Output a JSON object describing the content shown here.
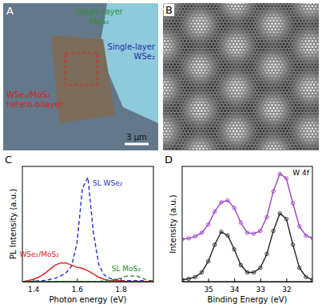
{
  "panels": [
    {
      "letter": "A",
      "labels": [
        {
          "text": "Single-layer MoS₂",
          "color": "#2f8f2f"
        },
        {
          "text": "Single-layer WSe₂",
          "color": "#1f2fa8"
        },
        {
          "text": "WSe₂/MoS₂ hetero-bilayer",
          "color": "#d42020"
        }
      ],
      "scale_bar": "3 μm"
    },
    {
      "letter": "B"
    }
  ],
  "chart_data": [
    {
      "type": "line",
      "letter": "C",
      "x_label": "Photon energy (eV)",
      "y_label": "PL Intensity (a.u.)",
      "x": [
        1.35,
        1.375,
        1.4,
        1.425,
        1.45,
        1.475,
        1.5,
        1.525,
        1.55,
        1.575,
        1.6,
        1.625,
        1.65,
        1.675,
        1.7,
        1.725,
        1.75,
        1.775,
        1.8,
        1.825,
        1.85,
        1.875,
        1.9,
        1.925,
        1.95
      ],
      "series": [
        {
          "name": "SL WSe₂",
          "color": "#2233cc",
          "line_style": "dashed",
          "values": [
            0,
            0,
            0,
            0.01,
            0.01,
            0.02,
            0.03,
            0.05,
            0.08,
            0.14,
            0.35,
            0.85,
            0.95,
            0.45,
            0.15,
            0.06,
            0.03,
            0.02,
            0.01,
            0.01,
            0.01,
            0.01,
            0.01,
            0,
            0
          ]
        },
        {
          "name": "WSe₂/MoS₂",
          "color": "#dd2222",
          "line_style": "solid",
          "values": [
            0,
            0.01,
            0.02,
            0.04,
            0.07,
            0.11,
            0.15,
            0.17,
            0.17,
            0.15,
            0.13,
            0.12,
            0.1,
            0.07,
            0.04,
            0.02,
            0.01,
            0.01,
            0.01,
            0,
            0,
            0,
            0,
            0,
            0
          ]
        },
        {
          "name": "SL MoS₂",
          "color": "#228822",
          "line_style": "dashed",
          "values": [
            0,
            0,
            0,
            0,
            0,
            0,
            0,
            0,
            0,
            0,
            0,
            0,
            0,
            0,
            0,
            0.01,
            0.01,
            0.02,
            0.03,
            0.05,
            0.05,
            0.05,
            0.03,
            0.01,
            0.01
          ]
        }
      ],
      "xlim": [
        1.35,
        1.95
      ],
      "xticks": [
        1.4,
        1.6,
        1.8
      ],
      "ylim": [
        0,
        1.05
      ],
      "tick_labels": "x"
    },
    {
      "type": "line",
      "letter": "D",
      "x_label": "Binding Energy (eV)",
      "y_label": "Intensity (a.u.)",
      "annotations": [
        "W 4f"
      ],
      "x": [
        36,
        35.75,
        35.5,
        35.25,
        35,
        34.75,
        34.5,
        34.25,
        34,
        33.75,
        33.5,
        33.25,
        33,
        32.75,
        32.5,
        32.25,
        32,
        31.75,
        31.5,
        31.25,
        31
      ],
      "series": [
        {
          "color": "#9b3fc8",
          "marker": "circle",
          "line_style": "solid",
          "values": [
            0.46,
            0.47,
            0.49,
            0.53,
            0.62,
            0.76,
            0.86,
            0.88,
            0.8,
            0.64,
            0.53,
            0.52,
            0.55,
            0.7,
            0.98,
            1.17,
            1.12,
            0.85,
            0.6,
            0.5,
            0.47
          ]
        },
        {
          "color": "#222222",
          "marker": "circle",
          "line_style": "solid",
          "values": [
            0.02,
            0.03,
            0.05,
            0.1,
            0.22,
            0.4,
            0.54,
            0.5,
            0.35,
            0.18,
            0.1,
            0.1,
            0.15,
            0.3,
            0.55,
            0.74,
            0.68,
            0.4,
            0.15,
            0.05,
            0.02
          ]
        }
      ],
      "xlim": [
        36,
        31
      ],
      "xticks": [
        35,
        34,
        33,
        32
      ],
      "ylim": [
        0,
        1.25
      ],
      "tick_labels": "x"
    }
  ]
}
